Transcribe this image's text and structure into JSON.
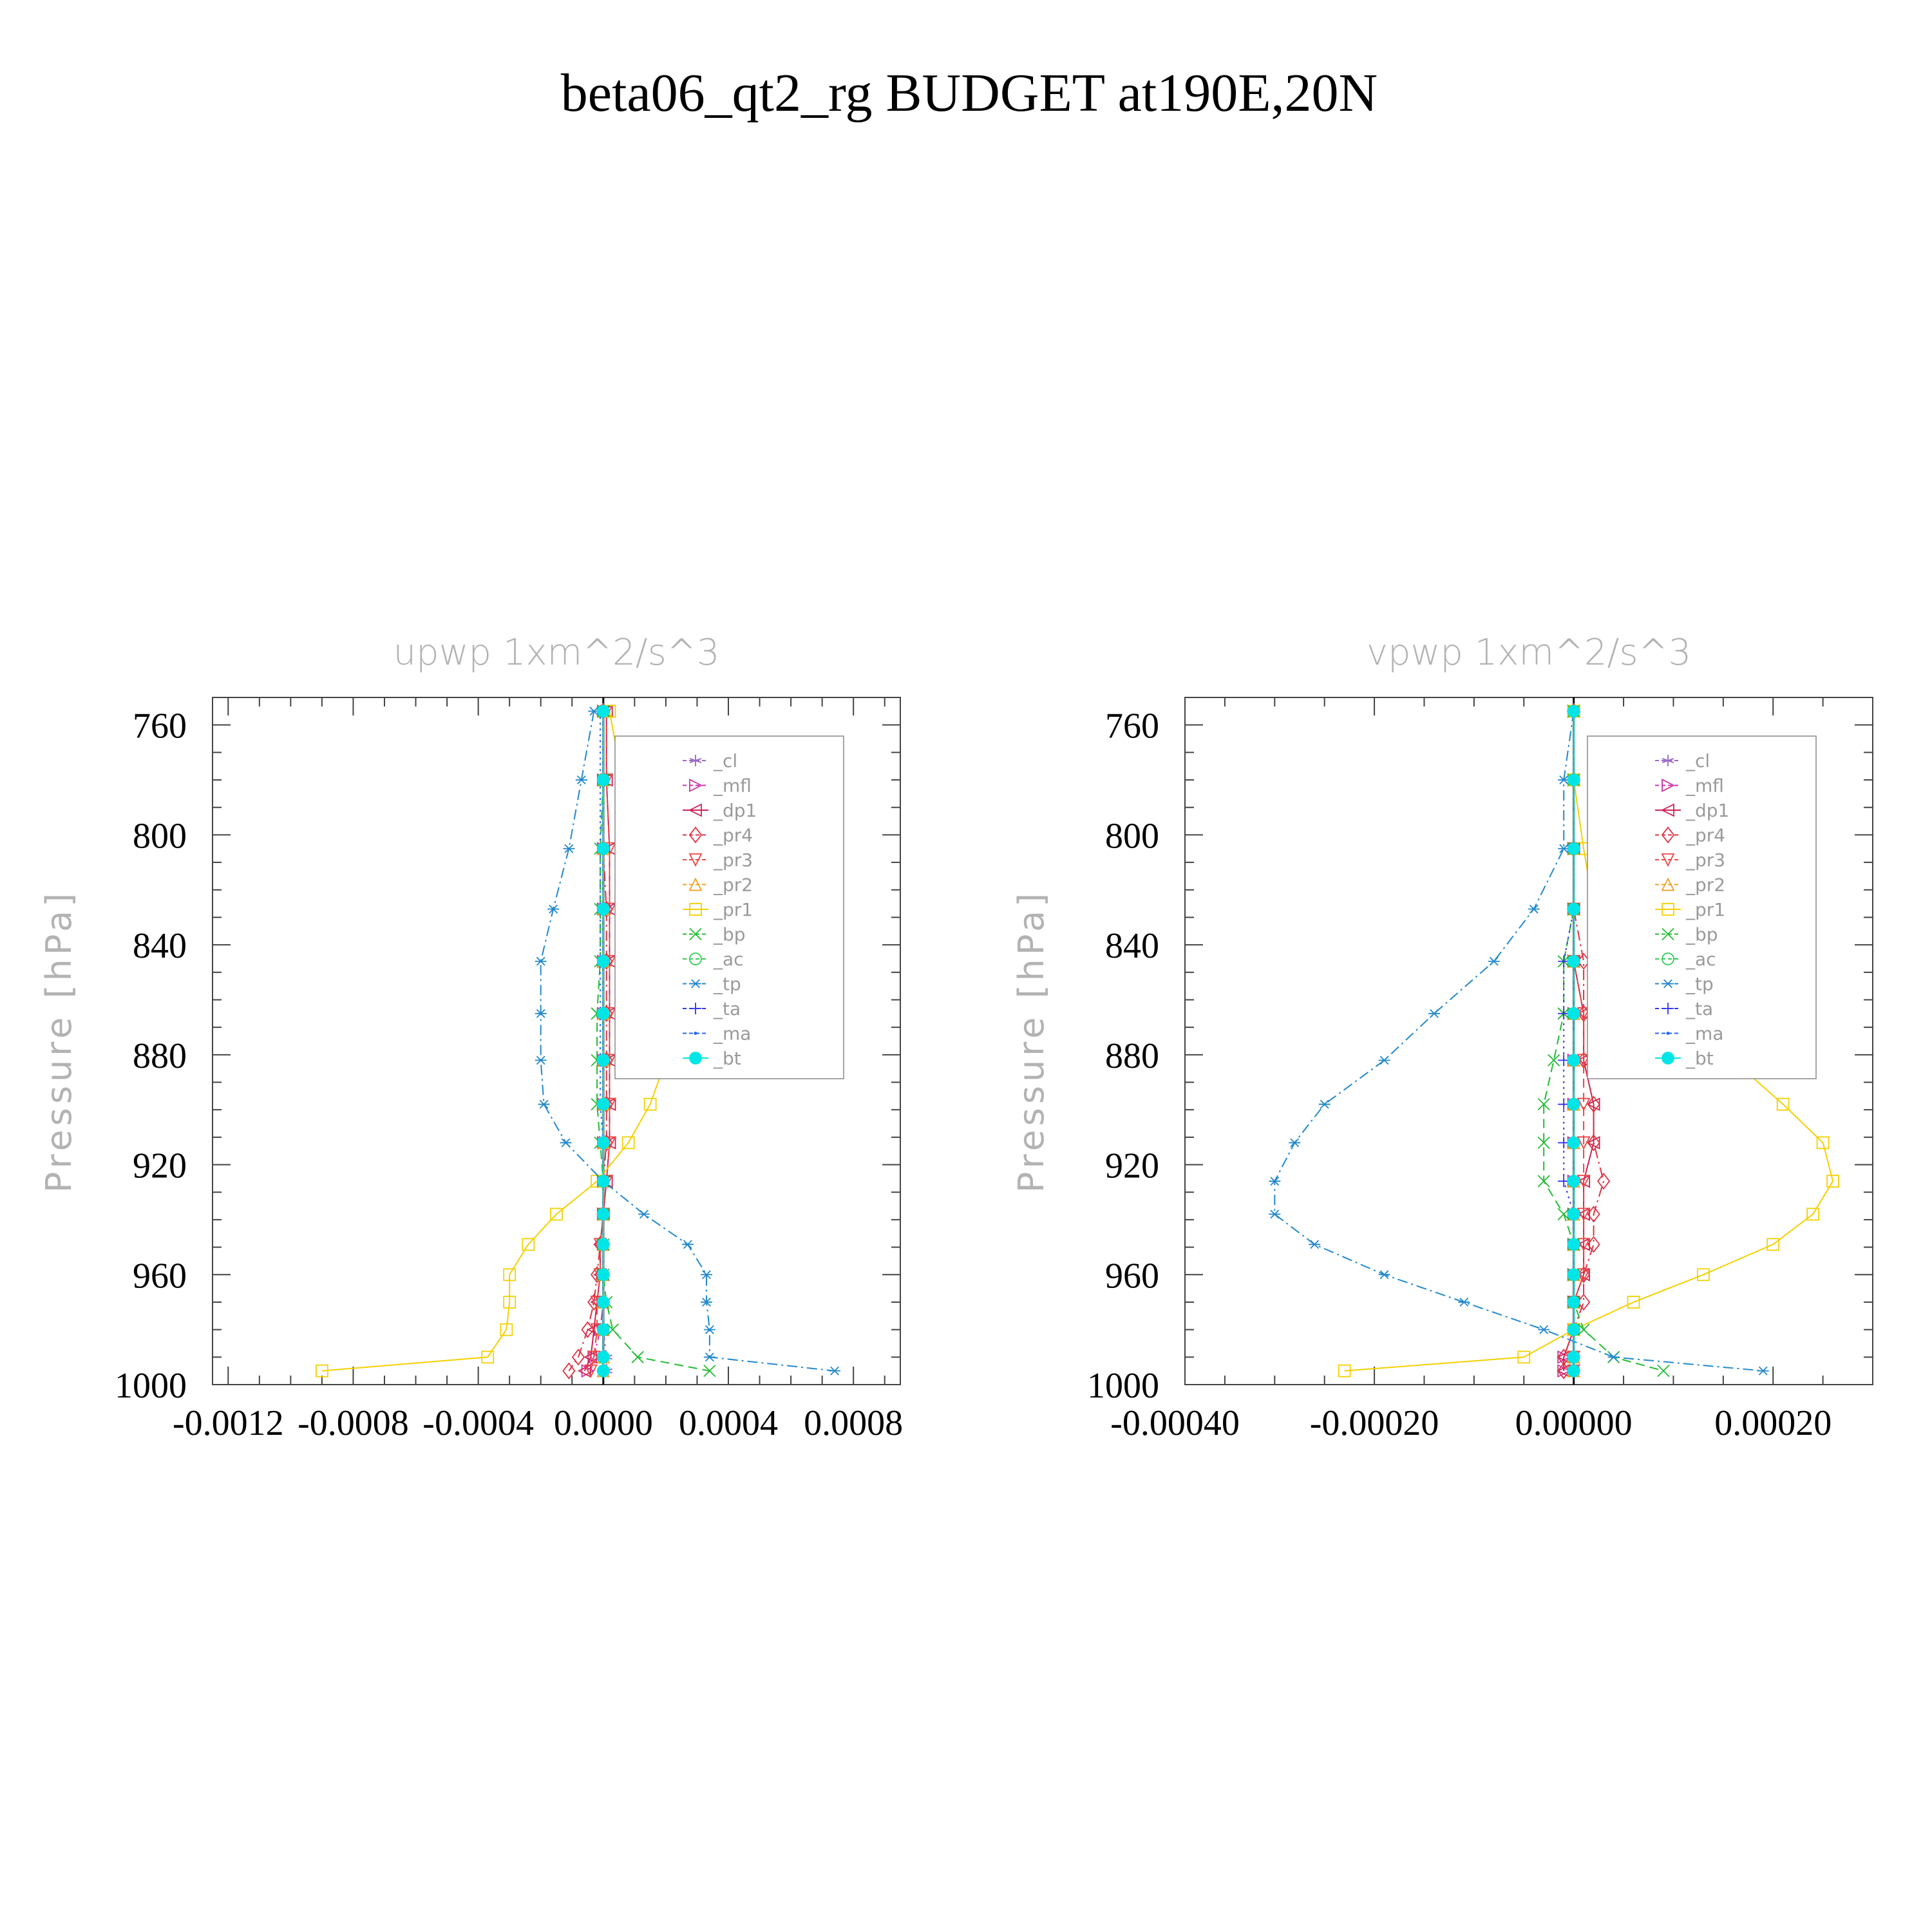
{
  "figure": {
    "title": "beta06_qt2_rg  BUDGET at190E,20N"
  },
  "legend_entries": [
    {
      "label": "_cl",
      "color": "#9966cc",
      "marker": "star"
    },
    {
      "label": "_mfl",
      "color": "#cc33aa",
      "marker": "tri-right"
    },
    {
      "label": "_dp1",
      "color": "#cc2255",
      "marker": "tri-left"
    },
    {
      "label": "_pr4",
      "color": "#dd3344",
      "marker": "diamond"
    },
    {
      "label": "_pr3",
      "color": "#ee4444",
      "marker": "tri-down"
    },
    {
      "label": "_pr2",
      "color": "#f0a020",
      "marker": "tri-up"
    },
    {
      "label": "_pr1",
      "color": "#f5d000",
      "marker": "square"
    },
    {
      "label": "_bp",
      "color": "#22bb33",
      "marker": "x"
    },
    {
      "label": "_ac",
      "color": "#33cc55",
      "marker": "circle"
    },
    {
      "label": "_tp",
      "color": "#2288cc",
      "marker": "asterisk"
    },
    {
      "label": "_ta",
      "color": "#3333ee",
      "marker": "plus"
    },
    {
      "label": "_ma",
      "color": "#2266ff",
      "marker": "dot"
    },
    {
      "label": "_bt",
      "color": "#00e5e5",
      "marker": "filled-circle"
    }
  ],
  "chart_data": [
    {
      "type": "line",
      "title": "upwp   1xm^2/s^3",
      "ylabel": "Pressure [hPa]",
      "xlabel": "",
      "xlim": [
        -0.00125,
        0.00095
      ],
      "ylim": [
        1000,
        750
      ],
      "xticks": [
        -0.0012,
        -0.0008,
        -0.0004,
        0.0,
        0.0004,
        0.0008
      ],
      "xtick_labels": [
        "-0.0012",
        "-0.0008",
        "-0.0004",
        "0.0000",
        "0.0004",
        "0.0008"
      ],
      "yticks": [
        760,
        800,
        840,
        880,
        920,
        960,
        1000
      ],
      "ytick_labels": [
        "760",
        "800",
        "840",
        "880",
        "920",
        "960",
        "1000"
      ],
      "zero_line": true,
      "legend_position": "top-right",
      "y": [
        755,
        780,
        805,
        827,
        846,
        865,
        882,
        898,
        912,
        926,
        938,
        949,
        960,
        970,
        980,
        990,
        995
      ],
      "series": [
        {
          "name": "_cl",
          "color": "#9966cc",
          "dash": "dash-dot",
          "marker": "star",
          "values": [
            0,
            0,
            0,
            0,
            0,
            0,
            0,
            0,
            0,
            0,
            0,
            0,
            0,
            0,
            0,
            1e-05,
            1e-05
          ]
        },
        {
          "name": "_mfl",
          "color": "#cc33aa",
          "dash": "dash-dot",
          "marker": "tri-right",
          "values": [
            0,
            0,
            0,
            0,
            0,
            0,
            0,
            0,
            0,
            0,
            0,
            0,
            0,
            0,
            -1e-05,
            -3e-05,
            -5e-05
          ]
        },
        {
          "name": "_dp1",
          "color": "#cc2255",
          "dash": "solid",
          "marker": "tri-left",
          "values": [
            1e-05,
            1e-05,
            2e-05,
            2e-05,
            2e-05,
            2e-05,
            2e-05,
            2e-05,
            2e-05,
            1e-05,
            0,
            -1e-05,
            -1e-05,
            -2e-05,
            -3e-05,
            -4e-05,
            -6e-05
          ]
        },
        {
          "name": "_pr4",
          "color": "#dd3344",
          "dash": "dash-dot",
          "marker": "diamond",
          "values": [
            0,
            0,
            0,
            1e-05,
            1e-05,
            1e-05,
            1e-05,
            1e-05,
            1e-05,
            0,
            0,
            -1e-05,
            -2e-05,
            -3e-05,
            -5e-05,
            -8e-05,
            -0.00011
          ]
        },
        {
          "name": "_pr3",
          "color": "#ee4444",
          "dash": "dashed",
          "marker": "tri-down",
          "values": [
            1e-05,
            1e-05,
            2e-05,
            2e-05,
            2e-05,
            2e-05,
            2e-05,
            2e-05,
            2e-05,
            1e-05,
            0,
            -1e-05,
            -1e-05,
            -2e-05,
            -2e-05,
            -3e-05,
            -4e-05
          ]
        },
        {
          "name": "_pr2",
          "color": "#f0a020",
          "dash": "dash-dot",
          "marker": "tri-up",
          "values": [
            0,
            0,
            0,
            0,
            0,
            0,
            0,
            0,
            0,
            0,
            0,
            0,
            0,
            0,
            0,
            0,
            0
          ]
        },
        {
          "name": "_pr1",
          "color": "#f5d000",
          "dash": "solid",
          "marker": "square",
          "values": [
            2e-05,
            6e-05,
            0.0001,
            0.00015,
            0.0002,
            0.00021,
            0.0002,
            0.00015,
            8e-05,
            -2e-05,
            -0.00015,
            -0.00024,
            -0.0003,
            -0.0003,
            -0.00031,
            -0.00037,
            -0.0009
          ]
        },
        {
          "name": "_bp",
          "color": "#22bb33",
          "dash": "dashed",
          "marker": "x",
          "values": [
            0,
            0,
            -1e-05,
            -1e-05,
            -1e-05,
            -2e-05,
            -2e-05,
            -2e-05,
            -1e-05,
            0,
            0,
            0,
            0,
            1e-05,
            3e-05,
            0.00011,
            0.00034
          ]
        },
        {
          "name": "_ac",
          "color": "#33cc55",
          "dash": "dash-dot",
          "marker": "circle",
          "values": [
            0,
            0,
            0,
            0,
            0,
            0,
            0,
            0,
            0,
            0,
            0,
            0,
            0,
            0,
            0,
            0,
            0
          ]
        },
        {
          "name": "_tp",
          "color": "#2288cc",
          "dash": "dash-dot",
          "marker": "asterisk",
          "values": [
            -3e-05,
            -7e-05,
            -0.00011,
            -0.00016,
            -0.0002,
            -0.0002,
            -0.0002,
            -0.00019,
            -0.00012,
            0,
            0.00013,
            0.00027,
            0.00033,
            0.00033,
            0.00034,
            0.00034,
            0.00074
          ]
        },
        {
          "name": "_ta",
          "color": "#3333ee",
          "dash": "dotted",
          "marker": "plus",
          "values": [
            0,
            0,
            0,
            0,
            0,
            0,
            0,
            0,
            0,
            0,
            0,
            0,
            0,
            0,
            0,
            0,
            0
          ]
        },
        {
          "name": "_ma",
          "color": "#2266ff",
          "dash": "dotted",
          "marker": "dot",
          "values": [
            -1e-05,
            -1e-05,
            -1e-05,
            -1e-05,
            -1e-05,
            -1e-05,
            -1e-05,
            -1e-05,
            0,
            0,
            0,
            0,
            0,
            0,
            0,
            0,
            0
          ]
        },
        {
          "name": "_bt",
          "color": "#00e5e5",
          "dash": "solid",
          "marker": "filled-circle",
          "values": [
            0,
            0,
            0,
            0,
            0,
            0,
            0,
            0,
            0,
            0,
            0,
            0,
            0,
            0,
            0,
            0,
            0
          ]
        }
      ]
    },
    {
      "type": "line",
      "title": "vpwp   1xm^2/s^3",
      "ylabel": "Pressure [hPa]",
      "xlabel": "",
      "xlim": [
        -0.00039,
        0.0003
      ],
      "ylim": [
        1000,
        750
      ],
      "xticks": [
        -0.0004,
        -0.0002,
        0.0,
        0.0002
      ],
      "xtick_labels": [
        "-0.00040",
        "-0.00020",
        "0.00000",
        "0.00020"
      ],
      "yticks": [
        760,
        800,
        840,
        880,
        920,
        960,
        1000
      ],
      "ytick_labels": [
        "760",
        "800",
        "840",
        "880",
        "920",
        "960",
        "1000"
      ],
      "zero_line": true,
      "legend_position": "top-right",
      "y": [
        755,
        780,
        805,
        827,
        846,
        865,
        882,
        898,
        912,
        926,
        938,
        949,
        960,
        970,
        980,
        990,
        995
      ],
      "series": [
        {
          "name": "_cl",
          "color": "#9966cc",
          "dash": "dash-dot",
          "marker": "star",
          "values": [
            0,
            0,
            0,
            0,
            0,
            0,
            0,
            0,
            0,
            0,
            0,
            0,
            0,
            0,
            0,
            0,
            0
          ]
        },
        {
          "name": "_mfl",
          "color": "#cc33aa",
          "dash": "dash-dot",
          "marker": "tri-right",
          "values": [
            0,
            0,
            0,
            0,
            0,
            0,
            0,
            0,
            0,
            0,
            0,
            0,
            0,
            0,
            0,
            -1e-05,
            -1e-05
          ]
        },
        {
          "name": "_dp1",
          "color": "#cc2255",
          "dash": "solid",
          "marker": "tri-left",
          "values": [
            0,
            0,
            0,
            0,
            0,
            1e-05,
            1e-05,
            2e-05,
            2e-05,
            1e-05,
            1e-05,
            1e-05,
            1e-05,
            0,
            0,
            -1e-05,
            -1e-05
          ]
        },
        {
          "name": "_pr4",
          "color": "#dd3344",
          "dash": "dash-dot",
          "marker": "diamond",
          "values": [
            0,
            0,
            0,
            0,
            1e-05,
            1e-05,
            1e-05,
            2e-05,
            2e-05,
            3e-05,
            2e-05,
            2e-05,
            1e-05,
            1e-05,
            0,
            -1e-05,
            -1e-05
          ]
        },
        {
          "name": "_pr3",
          "color": "#ee4444",
          "dash": "dashed",
          "marker": "tri-down",
          "values": [
            0,
            0,
            0,
            0,
            0,
            1e-05,
            1e-05,
            1e-05,
            1e-05,
            1e-05,
            1e-05,
            1e-05,
            1e-05,
            0,
            0,
            0,
            0
          ]
        },
        {
          "name": "_pr2",
          "color": "#f0a020",
          "dash": "dash-dot",
          "marker": "tri-up",
          "values": [
            0,
            0,
            0,
            0,
            0,
            0,
            0,
            0,
            0,
            0,
            0,
            0,
            0,
            0,
            0,
            0,
            0
          ]
        },
        {
          "name": "_pr1",
          "color": "#f5d000",
          "dash": "solid",
          "marker": "square",
          "values": [
            0,
            0,
            1e-05,
            2e-05,
            7e-05,
            0.00012,
            0.00016,
            0.00021,
            0.00025,
            0.00026,
            0.00024,
            0.0002,
            0.00013,
            6e-05,
            0,
            -5e-05,
            -0.00023
          ]
        },
        {
          "name": "_bp",
          "color": "#22bb33",
          "dash": "dashed",
          "marker": "x",
          "values": [
            0,
            0,
            0,
            0,
            -1e-05,
            -1e-05,
            -2e-05,
            -3e-05,
            -3e-05,
            -3e-05,
            -1e-05,
            0,
            0,
            0,
            1e-05,
            4e-05,
            9e-05
          ]
        },
        {
          "name": "_ac",
          "color": "#33cc55",
          "dash": "dash-dot",
          "marker": "circle",
          "values": [
            0,
            0,
            0,
            0,
            0,
            0,
            0,
            0,
            0,
            0,
            0,
            0,
            0,
            0,
            0,
            0,
            0
          ]
        },
        {
          "name": "_tp",
          "color": "#2288cc",
          "dash": "dash-dot",
          "marker": "asterisk",
          "values": [
            0,
            -1e-05,
            -1e-05,
            -4e-05,
            -8e-05,
            -0.00014,
            -0.00019,
            -0.00025,
            -0.00028,
            -0.0003,
            -0.0003,
            -0.00026,
            -0.00019,
            -0.00011,
            -3e-05,
            4e-05,
            0.00019
          ]
        },
        {
          "name": "_ta",
          "color": "#3333ee",
          "dash": "dotted",
          "marker": "plus",
          "values": [
            0,
            0,
            0,
            0,
            -1e-05,
            -1e-05,
            -1e-05,
            -1e-05,
            -1e-05,
            -1e-05,
            0,
            0,
            0,
            0,
            0,
            0,
            0
          ]
        },
        {
          "name": "_ma",
          "color": "#2266ff",
          "dash": "dotted",
          "marker": "dot",
          "values": [
            0,
            0,
            0,
            0,
            0,
            0,
            0,
            0,
            0,
            0,
            0,
            0,
            0,
            0,
            0,
            0,
            0
          ]
        },
        {
          "name": "_bt",
          "color": "#00e5e5",
          "dash": "solid",
          "marker": "filled-circle",
          "values": [
            0,
            0,
            0,
            0,
            0,
            0,
            0,
            0,
            0,
            0,
            0,
            0,
            0,
            0,
            0,
            0,
            0
          ]
        }
      ]
    }
  ]
}
